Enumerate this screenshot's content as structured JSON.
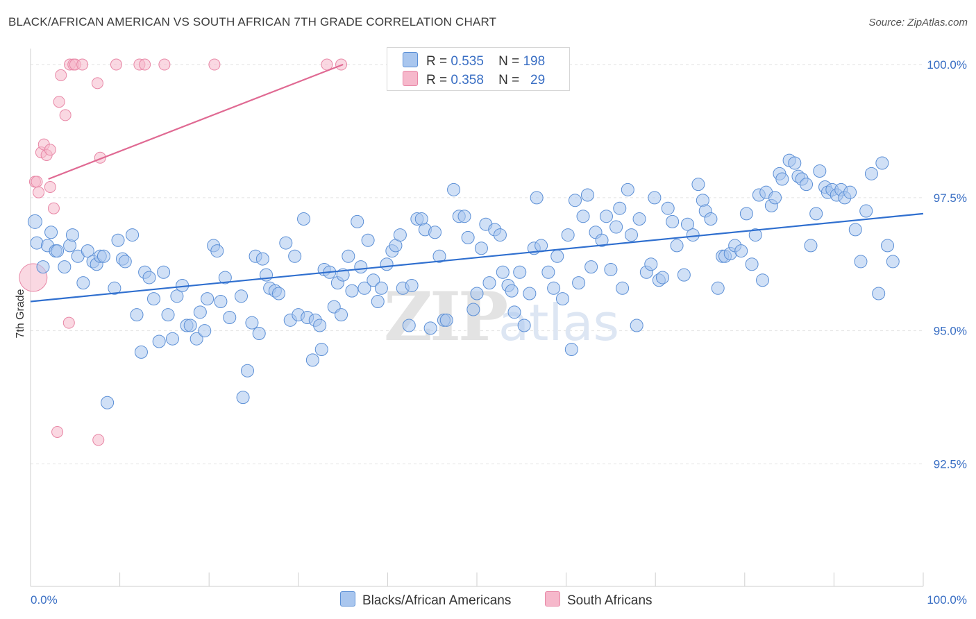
{
  "header": {
    "title": "BLACK/AFRICAN AMERICAN VS SOUTH AFRICAN 7TH GRADE CORRELATION CHART",
    "source": "Source: ZipAtlas.com"
  },
  "colors": {
    "blue_fill": "#a9c6ee",
    "blue_stroke": "#5b8fd6",
    "blue_line": "#2f6fcf",
    "pink_fill": "#f6b8cb",
    "pink_stroke": "#e887a6",
    "pink_line": "#e06a93",
    "tick_text": "#3a6fc4",
    "grid": "#e2e2e2"
  },
  "legend": {
    "rows": [
      {
        "r_label": "R =",
        "r_value": "0.535",
        "n_label": "N =",
        "n_value": "198"
      },
      {
        "r_label": "R =",
        "r_value": "0.358",
        "n_label": "N =",
        "n_value": "29"
      }
    ]
  },
  "bottom_legend": {
    "series1": "Blacks/African Americans",
    "series2": "South Africans"
  },
  "chart_data": {
    "type": "scatter",
    "ylabel": "7th Grade",
    "xlim": [
      0,
      100
    ],
    "ylim": [
      90.2,
      100.3
    ],
    "x_tick_labels": [
      "0.0%",
      "100.0%"
    ],
    "y_ticks": [
      92.5,
      95.0,
      97.5,
      100.0
    ],
    "y_tick_labels": [
      "92.5%",
      "95.0%",
      "97.5%",
      "100.0%"
    ],
    "grid": true,
    "watermark": "ZIPatlas",
    "series": [
      {
        "name": "Blacks/African Americans",
        "trend": {
          "x": [
            0,
            100
          ],
          "y": [
            95.55,
            97.2
          ]
        },
        "points": [
          [
            0.5,
            97.05
          ],
          [
            0.7,
            96.65
          ],
          [
            1.4,
            96.2
          ],
          [
            1.9,
            96.6
          ],
          [
            2.3,
            96.85
          ],
          [
            2.8,
            96.5
          ],
          [
            3.0,
            96.5
          ],
          [
            3.8,
            96.2
          ],
          [
            4.4,
            96.6
          ],
          [
            4.7,
            96.8
          ],
          [
            5.3,
            96.4
          ],
          [
            5.9,
            95.9
          ],
          [
            6.4,
            96.5
          ],
          [
            7.0,
            96.3
          ],
          [
            7.4,
            96.25
          ],
          [
            7.8,
            96.4
          ],
          [
            8.2,
            96.4
          ],
          [
            8.6,
            93.65
          ],
          [
            9.4,
            95.8
          ],
          [
            9.8,
            96.7
          ],
          [
            10.3,
            96.35
          ],
          [
            10.6,
            96.3
          ],
          [
            11.4,
            96.8
          ],
          [
            11.9,
            95.3
          ],
          [
            12.4,
            94.6
          ],
          [
            12.8,
            96.1
          ],
          [
            13.3,
            96.0
          ],
          [
            13.8,
            95.6
          ],
          [
            14.4,
            94.8
          ],
          [
            14.9,
            96.1
          ],
          [
            15.4,
            95.3
          ],
          [
            15.9,
            94.85
          ],
          [
            16.4,
            95.65
          ],
          [
            17.0,
            95.85
          ],
          [
            17.5,
            95.1
          ],
          [
            17.9,
            95.1
          ],
          [
            18.6,
            94.85
          ],
          [
            19.0,
            95.35
          ],
          [
            19.5,
            95.0
          ],
          [
            19.8,
            95.6
          ],
          [
            20.5,
            96.6
          ],
          [
            20.9,
            96.5
          ],
          [
            21.3,
            95.55
          ],
          [
            21.8,
            96.0
          ],
          [
            22.3,
            95.25
          ],
          [
            23.6,
            95.65
          ],
          [
            23.8,
            93.75
          ],
          [
            24.3,
            94.25
          ],
          [
            24.8,
            95.15
          ],
          [
            25.2,
            96.4
          ],
          [
            25.6,
            94.95
          ],
          [
            26.0,
            96.35
          ],
          [
            26.4,
            96.05
          ],
          [
            26.8,
            95.8
          ],
          [
            27.4,
            95.75
          ],
          [
            27.8,
            95.7
          ],
          [
            28.6,
            96.65
          ],
          [
            29.1,
            95.2
          ],
          [
            29.6,
            96.4
          ],
          [
            30.0,
            95.3
          ],
          [
            30.6,
            97.1
          ],
          [
            31.0,
            95.25
          ],
          [
            31.6,
            94.45
          ],
          [
            31.9,
            95.2
          ],
          [
            32.4,
            95.1
          ],
          [
            32.6,
            94.65
          ],
          [
            32.9,
            96.15
          ],
          [
            33.5,
            96.1
          ],
          [
            34.0,
            95.45
          ],
          [
            34.4,
            95.9
          ],
          [
            34.8,
            95.3
          ],
          [
            35.0,
            96.05
          ],
          [
            35.6,
            96.4
          ],
          [
            36.0,
            95.75
          ],
          [
            36.6,
            97.05
          ],
          [
            37.0,
            96.2
          ],
          [
            37.4,
            95.8
          ],
          [
            37.8,
            96.7
          ],
          [
            38.4,
            95.95
          ],
          [
            38.9,
            95.55
          ],
          [
            39.3,
            95.8
          ],
          [
            39.9,
            96.25
          ],
          [
            40.5,
            96.5
          ],
          [
            40.9,
            96.6
          ],
          [
            41.4,
            96.8
          ],
          [
            41.7,
            95.8
          ],
          [
            42.4,
            95.1
          ],
          [
            42.7,
            95.85
          ],
          [
            43.3,
            97.1
          ],
          [
            43.8,
            97.1
          ],
          [
            44.2,
            96.9
          ],
          [
            44.8,
            95.05
          ],
          [
            45.3,
            96.85
          ],
          [
            45.8,
            96.4
          ],
          [
            46.3,
            95.2
          ],
          [
            46.6,
            95.2
          ],
          [
            47.4,
            97.65
          ],
          [
            48.0,
            97.15
          ],
          [
            48.6,
            97.15
          ],
          [
            49.0,
            96.75
          ],
          [
            49.6,
            95.4
          ],
          [
            50.0,
            95.7
          ],
          [
            50.5,
            96.55
          ],
          [
            51.0,
            97.0
          ],
          [
            51.4,
            95.9
          ],
          [
            52.0,
            96.9
          ],
          [
            52.6,
            96.8
          ],
          [
            52.9,
            96.1
          ],
          [
            53.5,
            95.85
          ],
          [
            53.9,
            95.75
          ],
          [
            54.2,
            95.35
          ],
          [
            54.8,
            96.1
          ],
          [
            55.3,
            95.1
          ],
          [
            55.9,
            95.7
          ],
          [
            56.4,
            96.55
          ],
          [
            56.7,
            97.5
          ],
          [
            57.2,
            96.6
          ],
          [
            58.0,
            96.1
          ],
          [
            58.6,
            95.8
          ],
          [
            59.0,
            96.4
          ],
          [
            59.6,
            95.6
          ],
          [
            60.2,
            96.8
          ],
          [
            60.6,
            94.65
          ],
          [
            61.0,
            97.45
          ],
          [
            61.4,
            95.9
          ],
          [
            61.9,
            97.15
          ],
          [
            62.4,
            97.55
          ],
          [
            62.8,
            96.2
          ],
          [
            63.3,
            96.85
          ],
          [
            64.0,
            96.7
          ],
          [
            64.5,
            97.15
          ],
          [
            65.0,
            96.15
          ],
          [
            65.6,
            96.95
          ],
          [
            66.0,
            97.3
          ],
          [
            66.3,
            95.8
          ],
          [
            66.9,
            97.65
          ],
          [
            67.3,
            96.8
          ],
          [
            67.9,
            95.1
          ],
          [
            68.2,
            97.1
          ],
          [
            69.0,
            96.1
          ],
          [
            69.5,
            96.25
          ],
          [
            69.9,
            97.5
          ],
          [
            70.4,
            95.95
          ],
          [
            70.8,
            96.0
          ],
          [
            71.4,
            97.3
          ],
          [
            71.9,
            97.05
          ],
          [
            72.4,
            96.6
          ],
          [
            73.2,
            96.05
          ],
          [
            73.6,
            97.0
          ],
          [
            74.2,
            96.8
          ],
          [
            74.8,
            97.75
          ],
          [
            75.3,
            97.45
          ],
          [
            75.6,
            97.25
          ],
          [
            76.2,
            97.1
          ],
          [
            77.0,
            95.8
          ],
          [
            77.5,
            96.4
          ],
          [
            77.8,
            96.4
          ],
          [
            78.4,
            96.45
          ],
          [
            78.9,
            96.6
          ],
          [
            79.6,
            96.5
          ],
          [
            80.2,
            97.2
          ],
          [
            80.8,
            96.25
          ],
          [
            81.2,
            96.8
          ],
          [
            81.6,
            97.55
          ],
          [
            82.0,
            95.95
          ],
          [
            82.4,
            97.6
          ],
          [
            83.0,
            97.35
          ],
          [
            83.4,
            97.5
          ],
          [
            83.9,
            97.95
          ],
          [
            84.2,
            97.85
          ],
          [
            85.0,
            98.2
          ],
          [
            85.6,
            98.15
          ],
          [
            86.0,
            97.9
          ],
          [
            86.4,
            97.85
          ],
          [
            86.9,
            97.75
          ],
          [
            87.4,
            96.6
          ],
          [
            88.0,
            97.2
          ],
          [
            88.4,
            98.0
          ],
          [
            89.0,
            97.7
          ],
          [
            89.3,
            97.6
          ],
          [
            89.8,
            97.65
          ],
          [
            90.3,
            97.55
          ],
          [
            90.8,
            97.65
          ],
          [
            91.2,
            97.5
          ],
          [
            91.8,
            97.6
          ],
          [
            92.4,
            96.9
          ],
          [
            93.0,
            96.3
          ],
          [
            93.6,
            97.25
          ],
          [
            94.2,
            97.95
          ],
          [
            95.0,
            95.7
          ],
          [
            95.4,
            98.15
          ],
          [
            96.0,
            96.6
          ],
          [
            96.6,
            96.3
          ]
        ]
      },
      {
        "name": "South Africans",
        "trend": {
          "x": [
            2.0,
            35.0
          ],
          "y": [
            97.85,
            100.0
          ]
        },
        "points": [
          [
            0.3,
            96.0
          ],
          [
            0.5,
            97.8
          ],
          [
            0.7,
            97.8
          ],
          [
            0.9,
            97.6
          ],
          [
            1.2,
            98.35
          ],
          [
            1.5,
            98.5
          ],
          [
            1.8,
            98.3
          ],
          [
            2.2,
            98.4
          ],
          [
            2.2,
            97.7
          ],
          [
            2.6,
            97.3
          ],
          [
            3.0,
            93.1
          ],
          [
            3.2,
            99.3
          ],
          [
            3.4,
            99.8
          ],
          [
            3.9,
            99.05
          ],
          [
            4.3,
            95.15
          ],
          [
            4.4,
            100.0
          ],
          [
            4.8,
            100.0
          ],
          [
            5.0,
            100.0
          ],
          [
            5.8,
            100.0
          ],
          [
            7.5,
            99.65
          ],
          [
            7.6,
            92.95
          ],
          [
            7.8,
            98.25
          ],
          [
            9.6,
            100.0
          ],
          [
            12.2,
            100.0
          ],
          [
            12.8,
            100.0
          ],
          [
            15.0,
            100.0
          ],
          [
            20.6,
            100.0
          ],
          [
            33.2,
            100.0
          ],
          [
            34.8,
            100.0
          ]
        ]
      }
    ]
  }
}
